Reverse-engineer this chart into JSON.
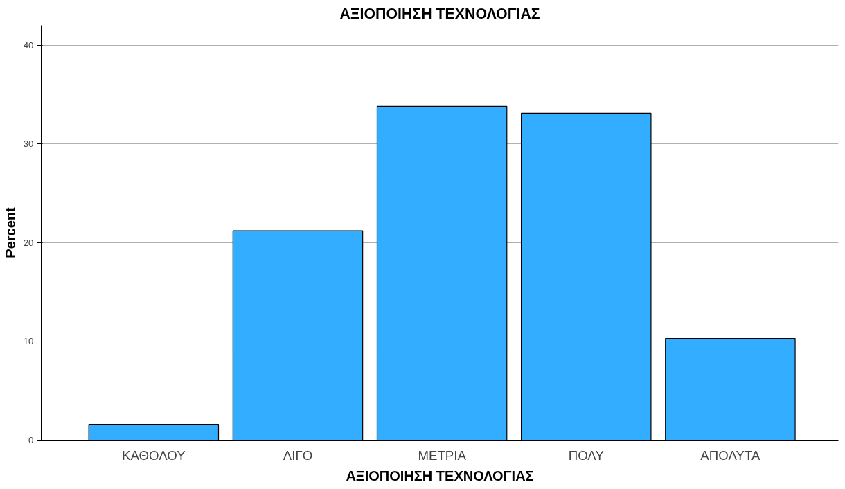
{
  "chart_data": {
    "type": "bar",
    "title": "ΑΞΙΟΠΟΙΗΣΗ ΤΕΧΝΟΛΟΓΙΑΣ",
    "xlabel": "ΑΞΙΟΠΟΙΗΣΗ ΤΕΧΝΟΛΟΓΙΑΣ",
    "ylabel": "Percent",
    "categories": [
      "ΚΑΘΟΛΟΥ",
      "ΛΙΓΟ",
      "ΜΕΤΡΙΑ",
      "ΠΟΛΥ",
      "ΑΠΟΛΥΤΑ"
    ],
    "values": [
      1.6,
      21.2,
      33.8,
      33.1,
      10.3
    ],
    "color": "#33adff",
    "ylim": [
      0,
      42
    ],
    "yticks": [
      0,
      10,
      20,
      30,
      40
    ],
    "grid": "y"
  }
}
